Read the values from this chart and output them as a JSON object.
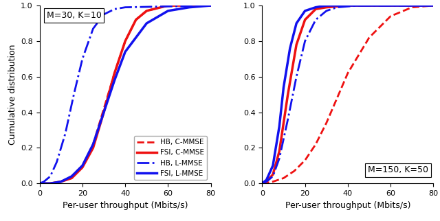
{
  "subplot1_title": "M=30, K=10",
  "subplot2_title": "M=150, K=50",
  "xlabel": "Per-user throughput (Mbits/s)",
  "ylabel": "Cumulative distribution",
  "xlim": [
    0,
    80
  ],
  "ylim": [
    0,
    1
  ],
  "xticks": [
    0,
    20,
    40,
    60,
    80
  ],
  "yticks": [
    0,
    0.2,
    0.4,
    0.6,
    0.8,
    1.0
  ],
  "legend_labels": [
    "HB, C-MMSE",
    "FSI, C-MMSE",
    "HB, L-MMSE",
    "FSI, L-MMSE"
  ],
  "red_color": "#ee1111",
  "blue_color": "#1111ee",
  "lw_dashed": 2.0,
  "lw_solid": 2.5,
  "p1": {
    "hb_cmmse": {
      "x": [
        0,
        5,
        10,
        15,
        20,
        25,
        30,
        35,
        40,
        45,
        50,
        60,
        80
      ],
      "y": [
        0,
        0.0,
        0.01,
        0.04,
        0.1,
        0.22,
        0.42,
        0.62,
        0.8,
        0.92,
        0.97,
        1.0,
        1.0
      ]
    },
    "fsi_cmmse": {
      "x": [
        0,
        5,
        10,
        15,
        20,
        25,
        30,
        35,
        40,
        45,
        50,
        60,
        80
      ],
      "y": [
        0,
        0.0,
        0.01,
        0.03,
        0.09,
        0.2,
        0.4,
        0.62,
        0.8,
        0.92,
        0.97,
        1.0,
        1.0
      ]
    },
    "hb_lmmse": {
      "x": [
        0,
        2,
        5,
        8,
        12,
        16,
        20,
        25,
        30,
        35,
        40,
        80
      ],
      "y": [
        0,
        0.01,
        0.04,
        0.12,
        0.28,
        0.5,
        0.7,
        0.87,
        0.95,
        0.98,
        0.99,
        1.0
      ]
    },
    "fsi_lmmse": {
      "x": [
        0,
        5,
        10,
        15,
        20,
        25,
        30,
        35,
        40,
        50,
        60,
        70,
        80
      ],
      "y": [
        0,
        0.0,
        0.01,
        0.04,
        0.1,
        0.22,
        0.4,
        0.58,
        0.74,
        0.9,
        0.97,
        0.99,
        1.0
      ]
    }
  },
  "p2": {
    "hb_cmmse": {
      "x": [
        0,
        5,
        10,
        15,
        20,
        25,
        30,
        35,
        40,
        50,
        60,
        70,
        80
      ],
      "y": [
        0,
        0.01,
        0.03,
        0.07,
        0.13,
        0.22,
        0.34,
        0.48,
        0.62,
        0.82,
        0.94,
        0.99,
        1.0
      ]
    },
    "fsi_cmmse": {
      "x": [
        0,
        2,
        5,
        8,
        12,
        16,
        20,
        25,
        30,
        40,
        80
      ],
      "y": [
        0,
        0.01,
        0.05,
        0.18,
        0.5,
        0.78,
        0.92,
        0.98,
        0.99,
        1.0,
        1.0
      ]
    },
    "hb_lmmse": {
      "x": [
        0,
        2,
        5,
        8,
        12,
        16,
        20,
        25,
        30,
        35,
        45,
        80
      ],
      "y": [
        0,
        0.01,
        0.04,
        0.14,
        0.36,
        0.6,
        0.8,
        0.92,
        0.97,
        0.99,
        1.0,
        1.0
      ]
    },
    "fsi_lmmse": {
      "x": [
        0,
        2,
        5,
        8,
        10,
        13,
        16,
        20,
        25,
        30,
        80
      ],
      "y": [
        0,
        0.02,
        0.1,
        0.32,
        0.54,
        0.76,
        0.9,
        0.97,
        0.99,
        1.0,
        1.0
      ]
    }
  }
}
